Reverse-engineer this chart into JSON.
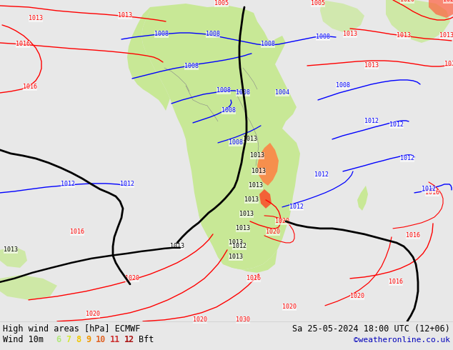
{
  "title_left": "High wind areas [hPa] ECMWF",
  "title_right": "Sa 25-05-2024 18:00 UTC (12+06)",
  "legend_label": "Wind 10m",
  "legend_bft": [
    "6",
    "7",
    "8",
    "9",
    "10",
    "11",
    "12"
  ],
  "legend_bft_colors": [
    "#b0e87a",
    "#d4e832",
    "#f0c800",
    "#f09600",
    "#e06428",
    "#cc3232",
    "#aa1414"
  ],
  "legend_bft_label_color": "#000000",
  "copyright": "©weatheronline.co.uk",
  "bg_color": "#e8e8e8",
  "map_bg_color": "#e8e8e8",
  "bottom_bar_color": "#ffffff",
  "text_color": "#000000",
  "title_fontsize": 8.5,
  "legend_fontsize": 8.5,
  "copyright_color": "#0000bb",
  "map_xlim": [
    0,
    634
  ],
  "map_ylim": [
    0,
    450
  ]
}
